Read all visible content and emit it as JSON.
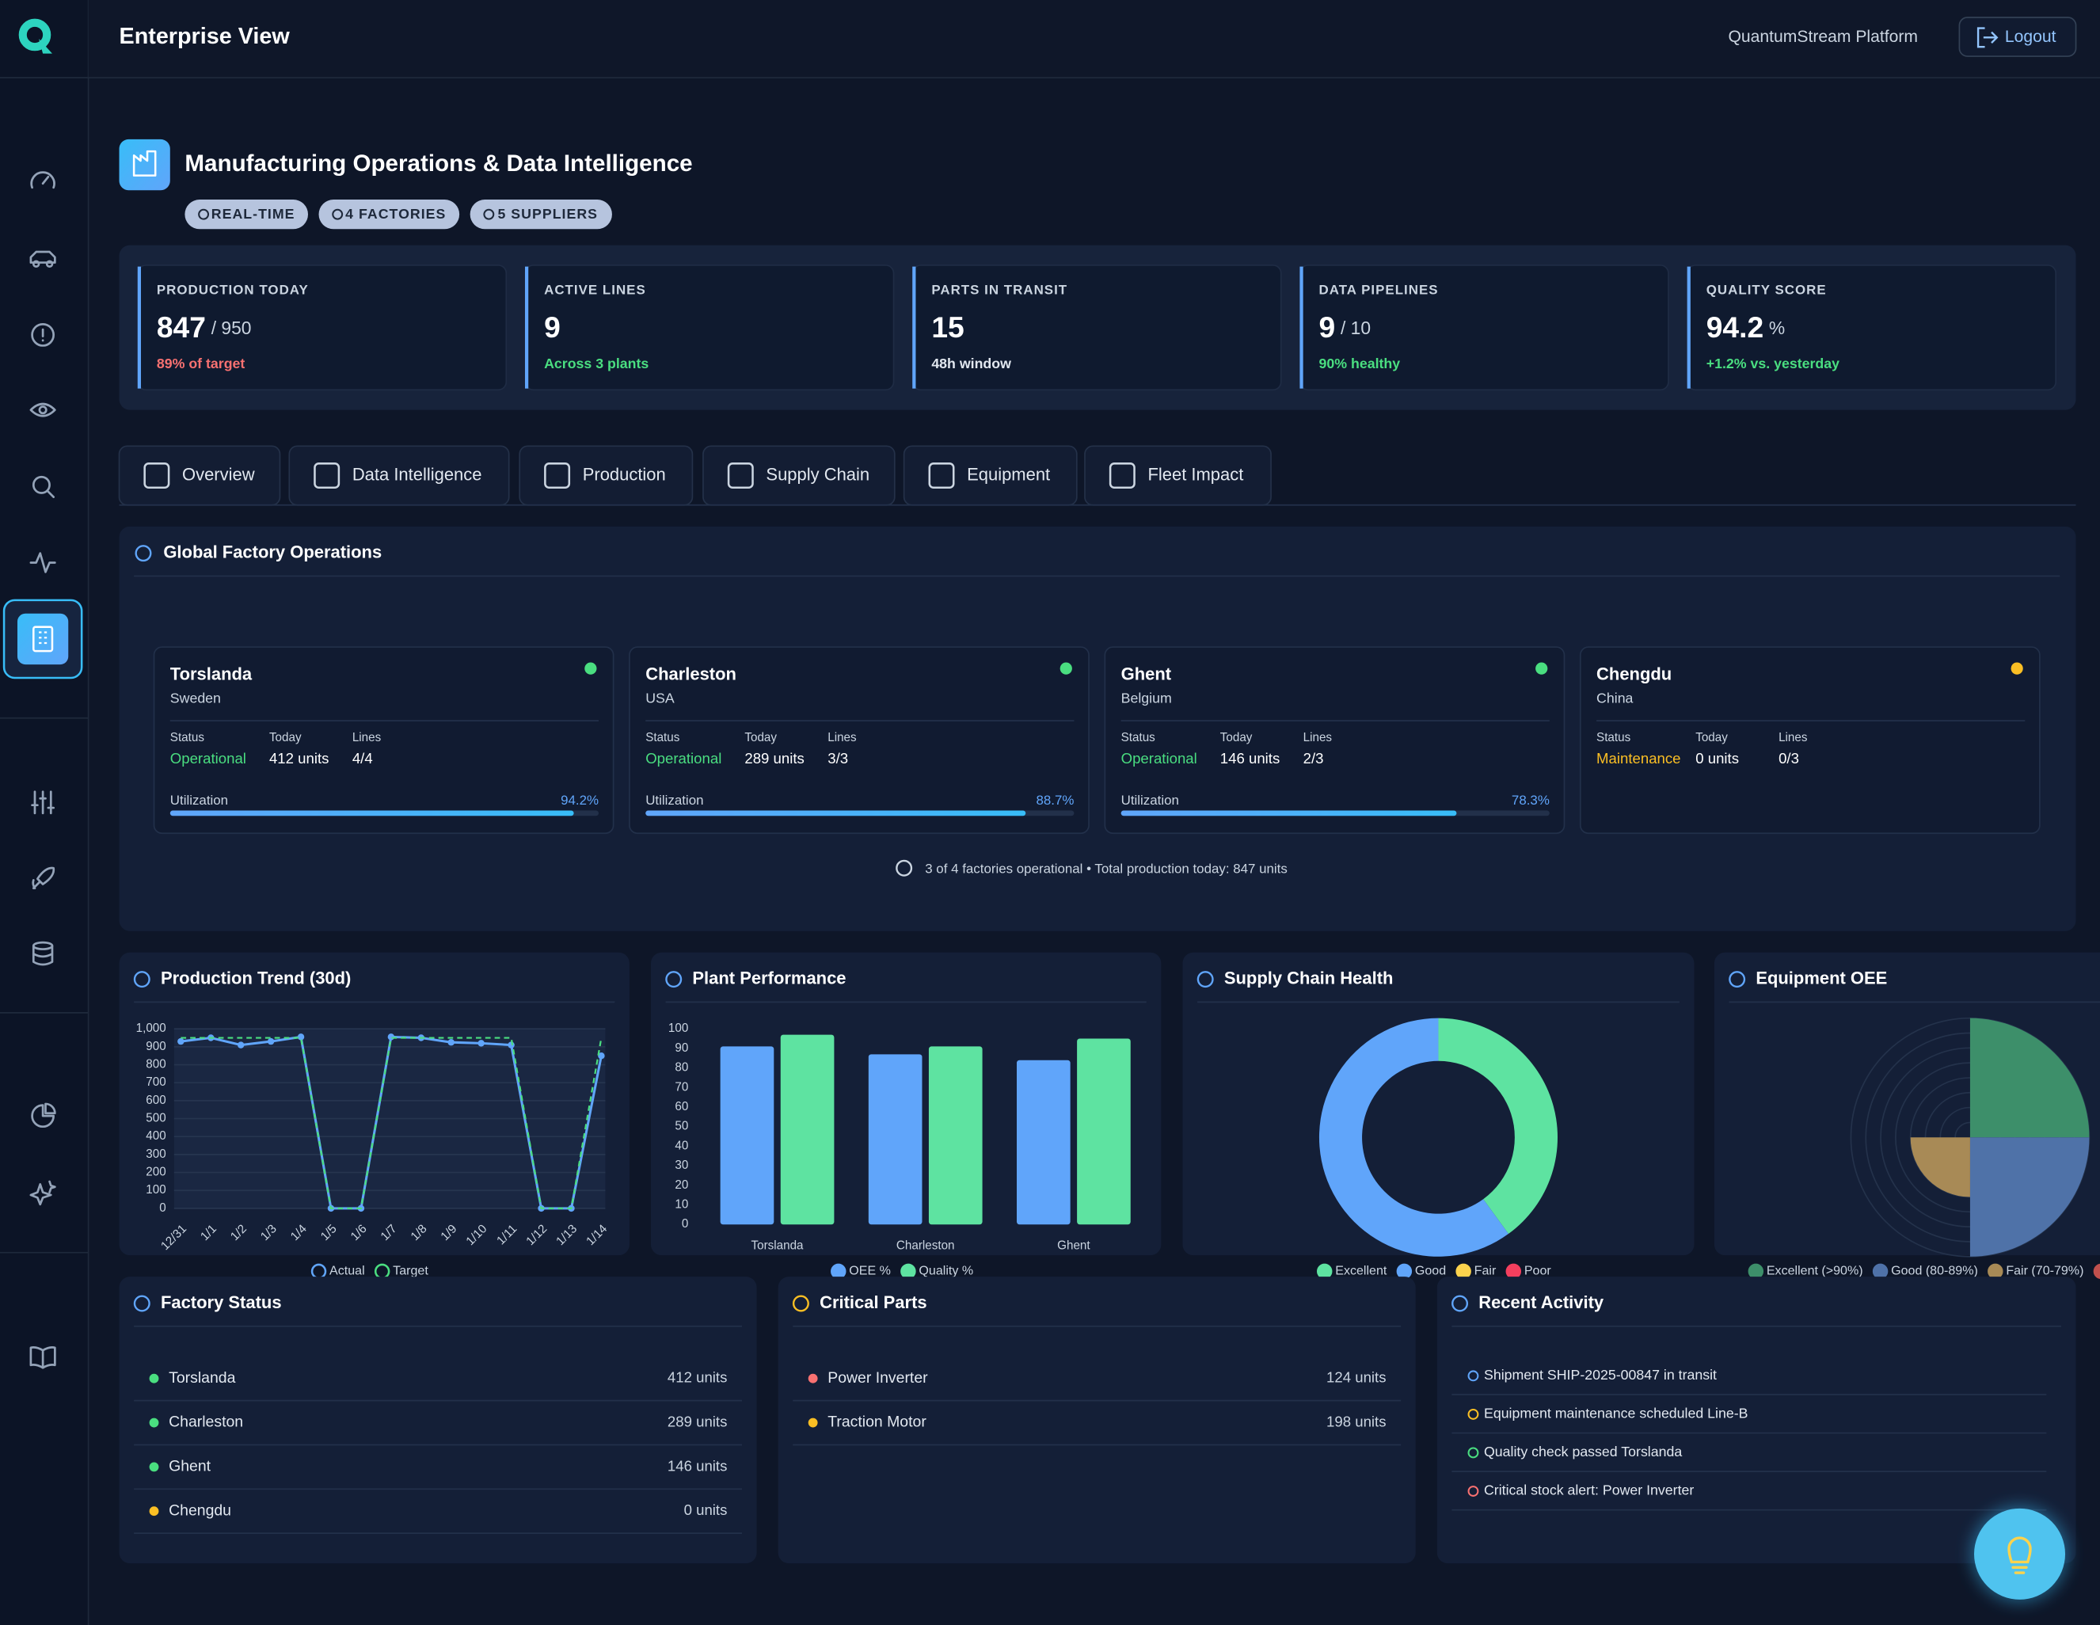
{
  "header": {
    "title": "Enterprise View",
    "platform": "QuantumStream Platform",
    "logout": "Logout"
  },
  "hero": {
    "title": "Manufacturing Operations & Data Intelligence",
    "badges": [
      "REAL-TIME",
      "4 FACTORIES",
      "5 SUPPLIERS"
    ]
  },
  "kpis": [
    {
      "label": "PRODUCTION TODAY",
      "value": 847,
      "suffix": "/ 950",
      "note": "89% of target",
      "note_color": "#f87171"
    },
    {
      "label": "ACTIVE LINES",
      "value": 9,
      "note": "Across 3 plants",
      "note_color": "#4ade80"
    },
    {
      "label": "PARTS IN TRANSIT",
      "value": 15,
      "note": "48h window",
      "note_color": "#e2e8f0"
    },
    {
      "label": "DATA PIPELINES",
      "value": 9,
      "suffix": "/ 10",
      "note": "90% healthy",
      "note_color": "#4ade80"
    },
    {
      "label": "QUALITY SCORE",
      "value": 94.2,
      "suffix": "%",
      "note": "+1.2% vs. yesterday",
      "note_color": "#4ade80"
    }
  ],
  "tabs": [
    "Overview",
    "Data Intelligence",
    "Production",
    "Supply Chain",
    "Equipment",
    "Fleet Impact"
  ],
  "factory_ops": {
    "title": "Global Factory Operations",
    "field_labels": {
      "status": "Status",
      "today": "Today",
      "lines": "Lines",
      "utilization": "Utilization"
    },
    "factories": [
      {
        "name": "Torslanda",
        "country": "Sweden",
        "status": "Operational",
        "status_color": "#4ade80",
        "today": "412 units",
        "lines": "4/4",
        "utilization": 94.2,
        "utilization_label": "94.2%"
      },
      {
        "name": "Charleston",
        "country": "USA",
        "status": "Operational",
        "status_color": "#4ade80",
        "today": "289 units",
        "lines": "3/3",
        "utilization": 88.7,
        "utilization_label": "88.7%"
      },
      {
        "name": "Ghent",
        "country": "Belgium",
        "status": "Operational",
        "status_color": "#4ade80",
        "today": "146 units",
        "lines": "2/3",
        "utilization": 78.3,
        "utilization_label": "78.3%"
      },
      {
        "name": "Chengdu",
        "country": "China",
        "status": "Maintenance",
        "status_color": "#fbbf24",
        "today": "0 units",
        "lines": "0/3"
      }
    ],
    "footer": "3 of 4 factories operational • Total production today: 847 units"
  },
  "chart_data": [
    {
      "type": "line",
      "title": "Production Trend (30d)",
      "categories": [
        "12/31",
        "1/1",
        "1/2",
        "1/3",
        "1/4",
        "1/5",
        "1/6",
        "1/7",
        "1/8",
        "1/9",
        "1/10",
        "1/11",
        "1/12",
        "1/13",
        "1/14"
      ],
      "series": [
        {
          "name": "Actual",
          "color": "#60a5fa",
          "values": [
            930,
            950,
            910,
            930,
            955,
            0,
            0,
            955,
            950,
            925,
            920,
            910,
            0,
            0,
            850
          ]
        },
        {
          "name": "Target",
          "color": "#4ade80",
          "dashed": true,
          "values": [
            950,
            950,
            950,
            950,
            950,
            0,
            0,
            950,
            950,
            950,
            950,
            950,
            0,
            0,
            950
          ]
        }
      ],
      "ylim": [
        0,
        1000
      ],
      "yticks": [
        0,
        100,
        200,
        300,
        400,
        500,
        600,
        700,
        800,
        900,
        {
          "value": 1000,
          "label": "1,000"
        }
      ],
      "grid": true
    },
    {
      "type": "bar",
      "title": "Plant Performance",
      "categories": [
        "Torslanda",
        "Charleston",
        "Ghent"
      ],
      "series": [
        {
          "name": "OEE %",
          "color": "#60a5fa",
          "values": [
            91,
            87,
            84
          ]
        },
        {
          "name": "Quality %",
          "color": "#5ee3a1",
          "values": [
            97,
            91,
            95
          ]
        }
      ],
      "ylim": [
        0,
        100
      ],
      "yticks": [
        0,
        10,
        20,
        30,
        40,
        50,
        60,
        70,
        80,
        90,
        100
      ],
      "grid": false
    },
    {
      "type": "doughnut",
      "title": "Supply Chain Health",
      "categories": [
        "Excellent",
        "Good",
        "Fair",
        "Poor"
      ],
      "values": [
        2,
        3,
        0,
        0
      ],
      "colors": [
        "#5ee3a1",
        "#60a5fa",
        "#fcd34d",
        "#f43f5e"
      ]
    },
    {
      "type": "polarArea",
      "title": "Equipment OEE",
      "categories": [
        "Excellent (>90%)",
        "Good (80-89%)",
        "Fair (70-79%)",
        null
      ],
      "values": [
        2,
        2,
        1,
        0
      ],
      "colors": [
        "#3d8f6a",
        "#4f72a8",
        "#a88a56",
        "#c0504d"
      ],
      "rlim": [
        0,
        2
      ],
      "rticks": [
        0.25,
        0.5,
        0.75,
        1,
        1.25,
        1.5,
        1.75,
        2
      ]
    }
  ],
  "factory_status": {
    "title": "Factory Status",
    "rows": [
      {
        "name": "Torslanda",
        "value": "412 units",
        "color": "#4ade80"
      },
      {
        "name": "Charleston",
        "value": "289 units",
        "color": "#4ade80"
      },
      {
        "name": "Ghent",
        "value": "146 units",
        "color": "#4ade80"
      },
      {
        "name": "Chengdu",
        "value": "0 units",
        "color": "#fbbf24"
      }
    ]
  },
  "critical_parts": {
    "title": "Critical Parts",
    "rows": [
      {
        "name": "Power Inverter",
        "value": "124 units",
        "color": "#f87171"
      },
      {
        "name": "Traction Motor",
        "value": "198 units",
        "color": "#fbbf24"
      }
    ]
  },
  "recent_activity": {
    "title": "Recent Activity",
    "items": [
      {
        "text": "Shipment SHIP-2025-00847 in transit",
        "color": "#60a5fa"
      },
      {
        "text": "Equipment maintenance scheduled Line-B",
        "color": "#fbbf24"
      },
      {
        "text": "Quality check passed Torslanda",
        "color": "#4ade80"
      },
      {
        "text": "Critical stock alert: Power Inverter",
        "color": "#f87171"
      }
    ]
  }
}
